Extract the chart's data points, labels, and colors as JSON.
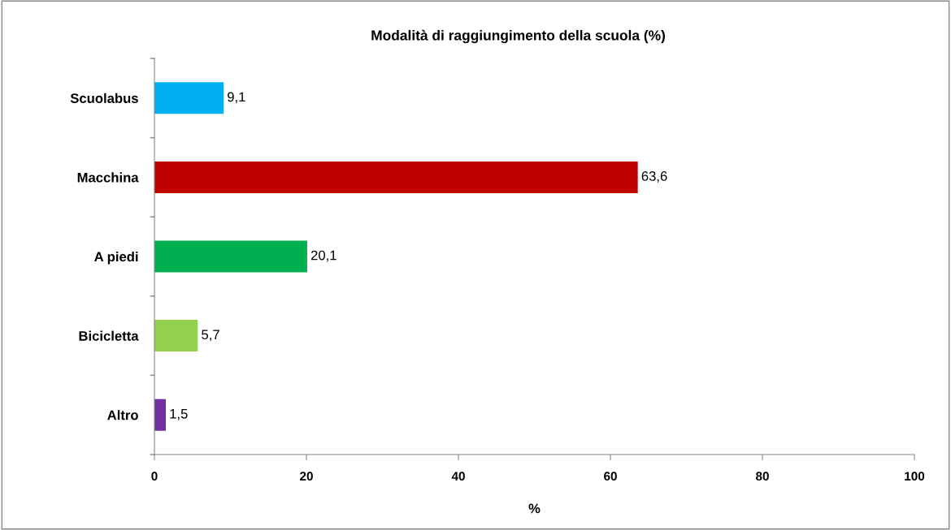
{
  "chart_data": {
    "type": "bar",
    "orientation": "horizontal",
    "title": "Modalità di raggiungimento della scuola (%)",
    "xlabel": "%",
    "categories": [
      "Scuolabus",
      "Macchina",
      "A piedi",
      "Bicicletta",
      "Altro"
    ],
    "values": [
      9.1,
      63.6,
      20.1,
      5.7,
      1.5
    ],
    "colors": [
      "#00b0f0",
      "#c00000",
      "#00b050",
      "#92d050",
      "#7030a0"
    ],
    "value_labels": [
      "9,1",
      "63,6",
      "20,1",
      "5,7",
      "1,5"
    ],
    "xlim": [
      0,
      100
    ],
    "xticks": [
      0,
      20,
      40,
      60,
      80,
      100
    ],
    "grid": false,
    "legend": false
  }
}
